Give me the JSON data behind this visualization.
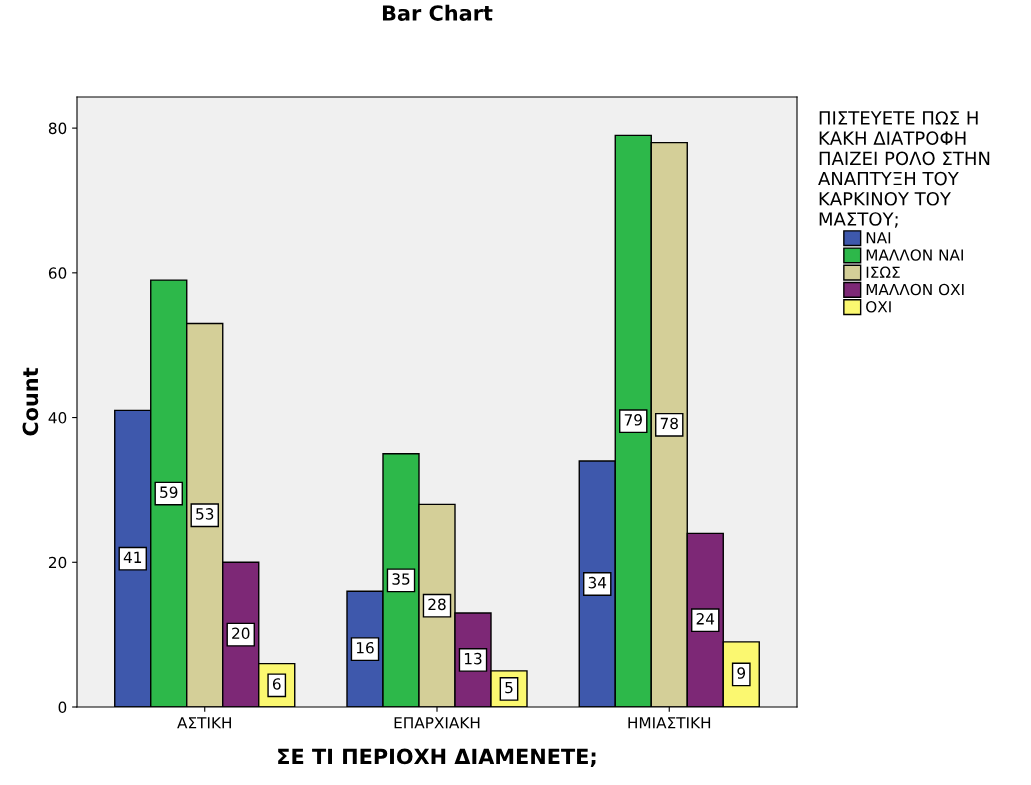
{
  "chart_data": {
    "type": "bar",
    "title": "Bar Chart",
    "xlabel": "ΣΕ ΤΙ ΠΕΡΙΟΧΗ ΔΙΑΜΕΝΕΤΕ;",
    "ylabel": "Count",
    "legend_title": "ΠΙΣΤΕΥΕΤΕ ΠΩΣ Η\nΚΑΚΗ ΔΙΑΤΡΟΦΗ\nΠΑΙΖΕΙ ΡΟΛΟ ΣΤΗΝ\nΑΝΑΠΤΥΞΗ ΤΟΥ\nΚΑΡΚΙΝΟΥ ΤΟΥ\nΜΑΣΤΟΥ;",
    "categories": [
      "ΑΣΤΙΚΗ",
      "ΕΠΑΡΧΙΑΚΗ",
      "ΗΜΙΑΣΤΙΚΗ"
    ],
    "series": [
      {
        "name": "ΝΑΙ",
        "color": "#3e58ac",
        "values": [
          41,
          16,
          34
        ]
      },
      {
        "name": "ΜΑΛΛΟΝ ΝΑΙ",
        "color": "#2db84a",
        "values": [
          59,
          35,
          79
        ]
      },
      {
        "name": "ΙΣΩΣ",
        "color": "#d4cf98",
        "values": [
          53,
          28,
          78
        ]
      },
      {
        "name": "ΜΑΛΛΟΝ ΟΧΙ",
        "color": "#7d2876",
        "values": [
          20,
          13,
          24
        ]
      },
      {
        "name": "ΟΧΙ",
        "color": "#fbf870",
        "values": [
          6,
          5,
          9
        ]
      }
    ],
    "ylim": [
      0,
      84.3
    ],
    "yticks": [
      0,
      20,
      40,
      60,
      80
    ],
    "grid": false,
    "legend": "right",
    "data_labels": true
  }
}
